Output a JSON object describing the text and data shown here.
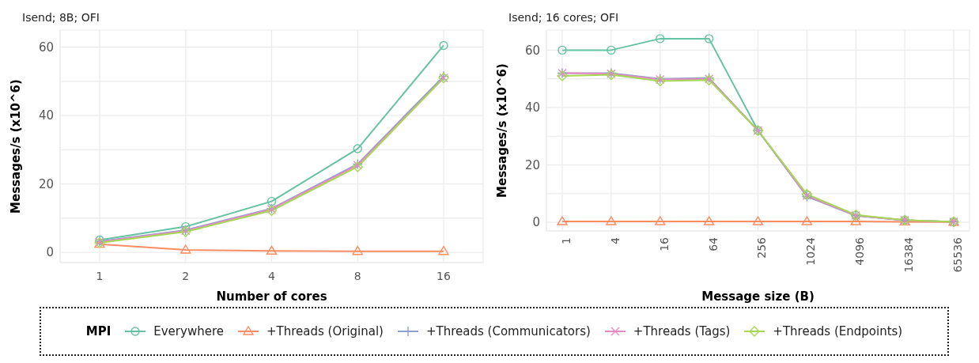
{
  "chart_data": [
    {
      "type": "line",
      "title": "Isend; 8B; OFI",
      "xlabel": "Number of cores",
      "ylabel": "Messages/s (x10^6)",
      "legend_title": "MPI",
      "legend": "bottom",
      "grid": true,
      "categories": [
        "1",
        "2",
        "4",
        "8",
        "16"
      ],
      "ylim": [
        -3,
        65
      ],
      "yticks": [
        0,
        {
          "value": 10,
          "label": null
        },
        20,
        {
          "value": 30,
          "label": null
        },
        40,
        {
          "value": 50,
          "label": null
        },
        60
      ],
      "series": [
        {
          "name": "Everywhere",
          "color": "#66c2a5",
          "marker": "circle",
          "values": [
            3.6,
            7.5,
            14.9,
            30.3,
            60.5
          ]
        },
        {
          "name": "+Threads (Original)",
          "color": "#fc8d62",
          "marker": "triangle",
          "values": [
            2.4,
            0.7,
            0.4,
            0.3,
            0.3
          ]
        },
        {
          "name": "+Threads (Communicators)",
          "color": "#8da0cb",
          "marker": "plus",
          "values": [
            3.2,
            6.5,
            12.8,
            25.8,
            51.5
          ]
        },
        {
          "name": "+Threads (Tags)",
          "color": "#e78ac3",
          "marker": "cross",
          "values": [
            3.0,
            6.3,
            12.6,
            25.5,
            51.0
          ]
        },
        {
          "name": "+Threads (Endpoints)",
          "color": "#a6d854",
          "marker": "diamond",
          "values": [
            2.8,
            6.0,
            12.2,
            25.0,
            51.0
          ]
        }
      ]
    },
    {
      "type": "line",
      "title": "Isend; 16 cores; OFI",
      "xlabel": "Message size (B)",
      "ylabel": "Messages/s (x10^6)",
      "grid": true,
      "categories": [
        "1",
        "4",
        "16",
        "64",
        "256",
        "1024",
        "4096",
        "16384",
        "65536"
      ],
      "ylim": [
        -3,
        67
      ],
      "yticks": [
        0,
        {
          "value": 10,
          "label": null
        },
        20,
        {
          "value": 30,
          "label": null
        },
        40,
        {
          "value": 50,
          "label": null
        },
        60
      ],
      "series": [
        {
          "color": "#66c2a5",
          "marker": "circle",
          "values": [
            60,
            60,
            64,
            64,
            32,
            9.5,
            2.4,
            0.7,
            0.2
          ]
        },
        {
          "color": "#fc8d62",
          "marker": "triangle",
          "values": [
            0.3,
            0.3,
            0.3,
            0.3,
            0.3,
            0.3,
            0.3,
            0.2,
            0.1
          ]
        },
        {
          "color": "#8da0cb",
          "marker": "plus",
          "values": [
            52,
            52,
            50,
            50.3,
            32,
            9,
            2.3,
            0.7,
            0.2
          ]
        },
        {
          "color": "#e78ac3",
          "marker": "cross",
          "values": [
            52,
            51.8,
            49.8,
            50,
            32,
            9.3,
            2.4,
            0.7,
            0.2
          ]
        },
        {
          "color": "#a6d854",
          "marker": "diamond",
          "values": [
            51,
            51.4,
            49.2,
            49.6,
            32,
            9.8,
            2.6,
            0.8,
            0.2
          ]
        }
      ]
    }
  ]
}
